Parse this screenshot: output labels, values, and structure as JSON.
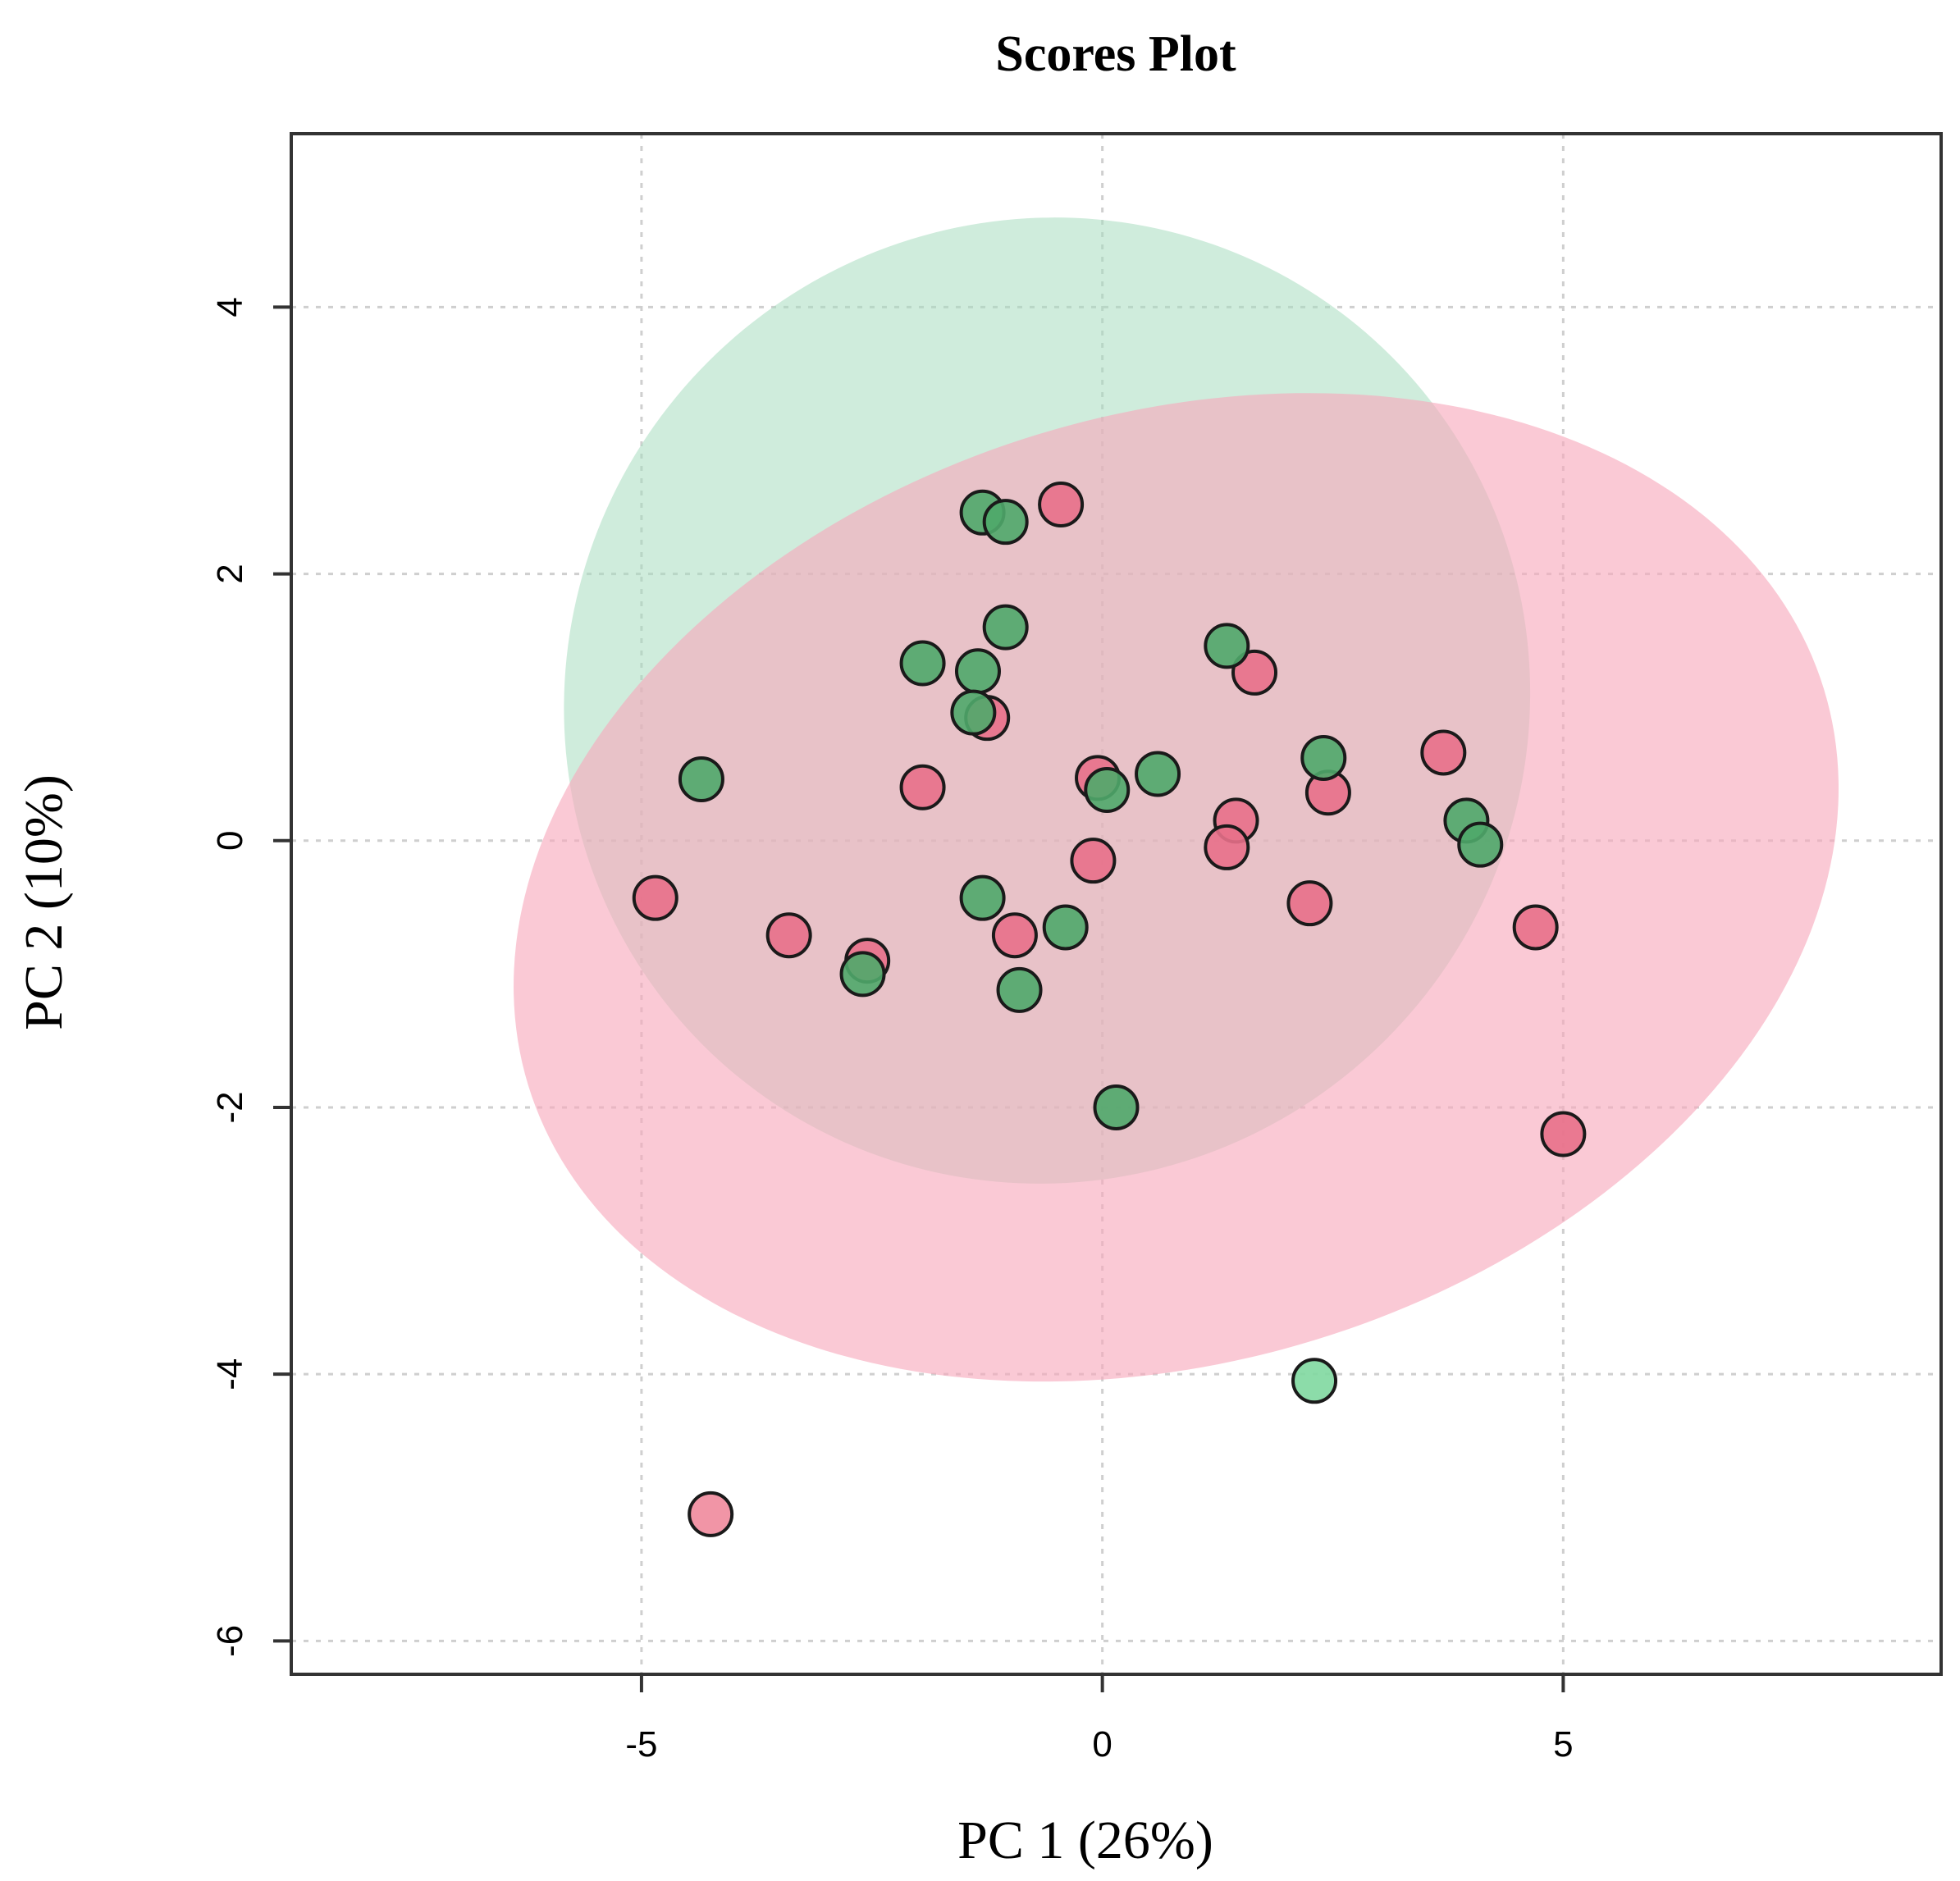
{
  "chart_data": {
    "type": "scatter",
    "title": "Scores Plot",
    "xlabel": "PC 1 (26%)",
    "ylabel": "PC 2 (10%)",
    "xlim": [
      -8.8,
      9.1
    ],
    "ylim": [
      -6.25,
      5.3
    ],
    "xticks": [
      -5,
      0,
      5
    ],
    "xtick_labels": [
      "-5",
      "0",
      "5"
    ],
    "yticks": [
      4,
      2,
      0,
      -2,
      -4,
      -6
    ],
    "ytick_labels": [
      "4",
      "2",
      "0",
      "-2",
      "-4",
      "-6"
    ],
    "grid": true,
    "colors": {
      "red_point": "#e8708a",
      "green_point": "#4fa86a",
      "red_outlier": "#f08a9c",
      "green_outlier": "#7fd8a0",
      "red_ellipse": "#f7a8bc",
      "green_ellipse": "#a8dcc0"
    },
    "ellipses": [
      {
        "name": "green",
        "cx": -0.6,
        "cy": 1.05,
        "rx": 5.2,
        "ry": 3.65,
        "angle_deg": -45
      },
      {
        "name": "red",
        "cx": 0.8,
        "cy": -0.35,
        "rx": 7.35,
        "ry": 3.55,
        "angle_deg": 17
      }
    ],
    "series": [
      {
        "name": "red group",
        "points": [
          {
            "x": -0.45,
            "y": 2.52
          },
          {
            "x": -1.25,
            "y": 0.92
          },
          {
            "x": -1.95,
            "y": 0.4
          },
          {
            "x": -0.05,
            "y": 0.47
          },
          {
            "x": 1.65,
            "y": 1.26
          },
          {
            "x": 3.7,
            "y": 0.66
          },
          {
            "x": 2.45,
            "y": 0.36
          },
          {
            "x": 1.45,
            "y": 0.15
          },
          {
            "x": 1.35,
            "y": -0.05
          },
          {
            "x": -0.1,
            "y": -0.15
          },
          {
            "x": 2.25,
            "y": -0.47
          },
          {
            "x": 4.7,
            "y": -0.65
          },
          {
            "x": -4.85,
            "y": -0.43
          },
          {
            "x": -3.4,
            "y": -0.71
          },
          {
            "x": -2.55,
            "y": -0.9
          },
          {
            "x": -0.95,
            "y": -0.71
          },
          {
            "x": 5.0,
            "y": -2.2
          },
          {
            "x": -4.25,
            "y": -5.05,
            "outlier": true
          }
        ]
      },
      {
        "name": "green group",
        "points": [
          {
            "x": -1.3,
            "y": 2.46
          },
          {
            "x": -1.05,
            "y": 2.39
          },
          {
            "x": -1.05,
            "y": 1.6
          },
          {
            "x": -1.95,
            "y": 1.33
          },
          {
            "x": -1.35,
            "y": 1.27
          },
          {
            "x": -1.4,
            "y": 0.96
          },
          {
            "x": 1.35,
            "y": 1.46
          },
          {
            "x": 0.6,
            "y": 0.5
          },
          {
            "x": 0.05,
            "y": 0.38
          },
          {
            "x": 2.4,
            "y": 0.62
          },
          {
            "x": 3.95,
            "y": 0.15
          },
          {
            "x": 4.1,
            "y": -0.03
          },
          {
            "x": -4.35,
            "y": 0.46
          },
          {
            "x": -1.3,
            "y": -0.43
          },
          {
            "x": -0.4,
            "y": -0.65
          },
          {
            "x": -2.6,
            "y": -1.0
          },
          {
            "x": -0.9,
            "y": -1.12
          },
          {
            "x": 0.15,
            "y": -2.0
          },
          {
            "x": 2.3,
            "y": -4.05,
            "outlier": true
          }
        ]
      }
    ]
  }
}
